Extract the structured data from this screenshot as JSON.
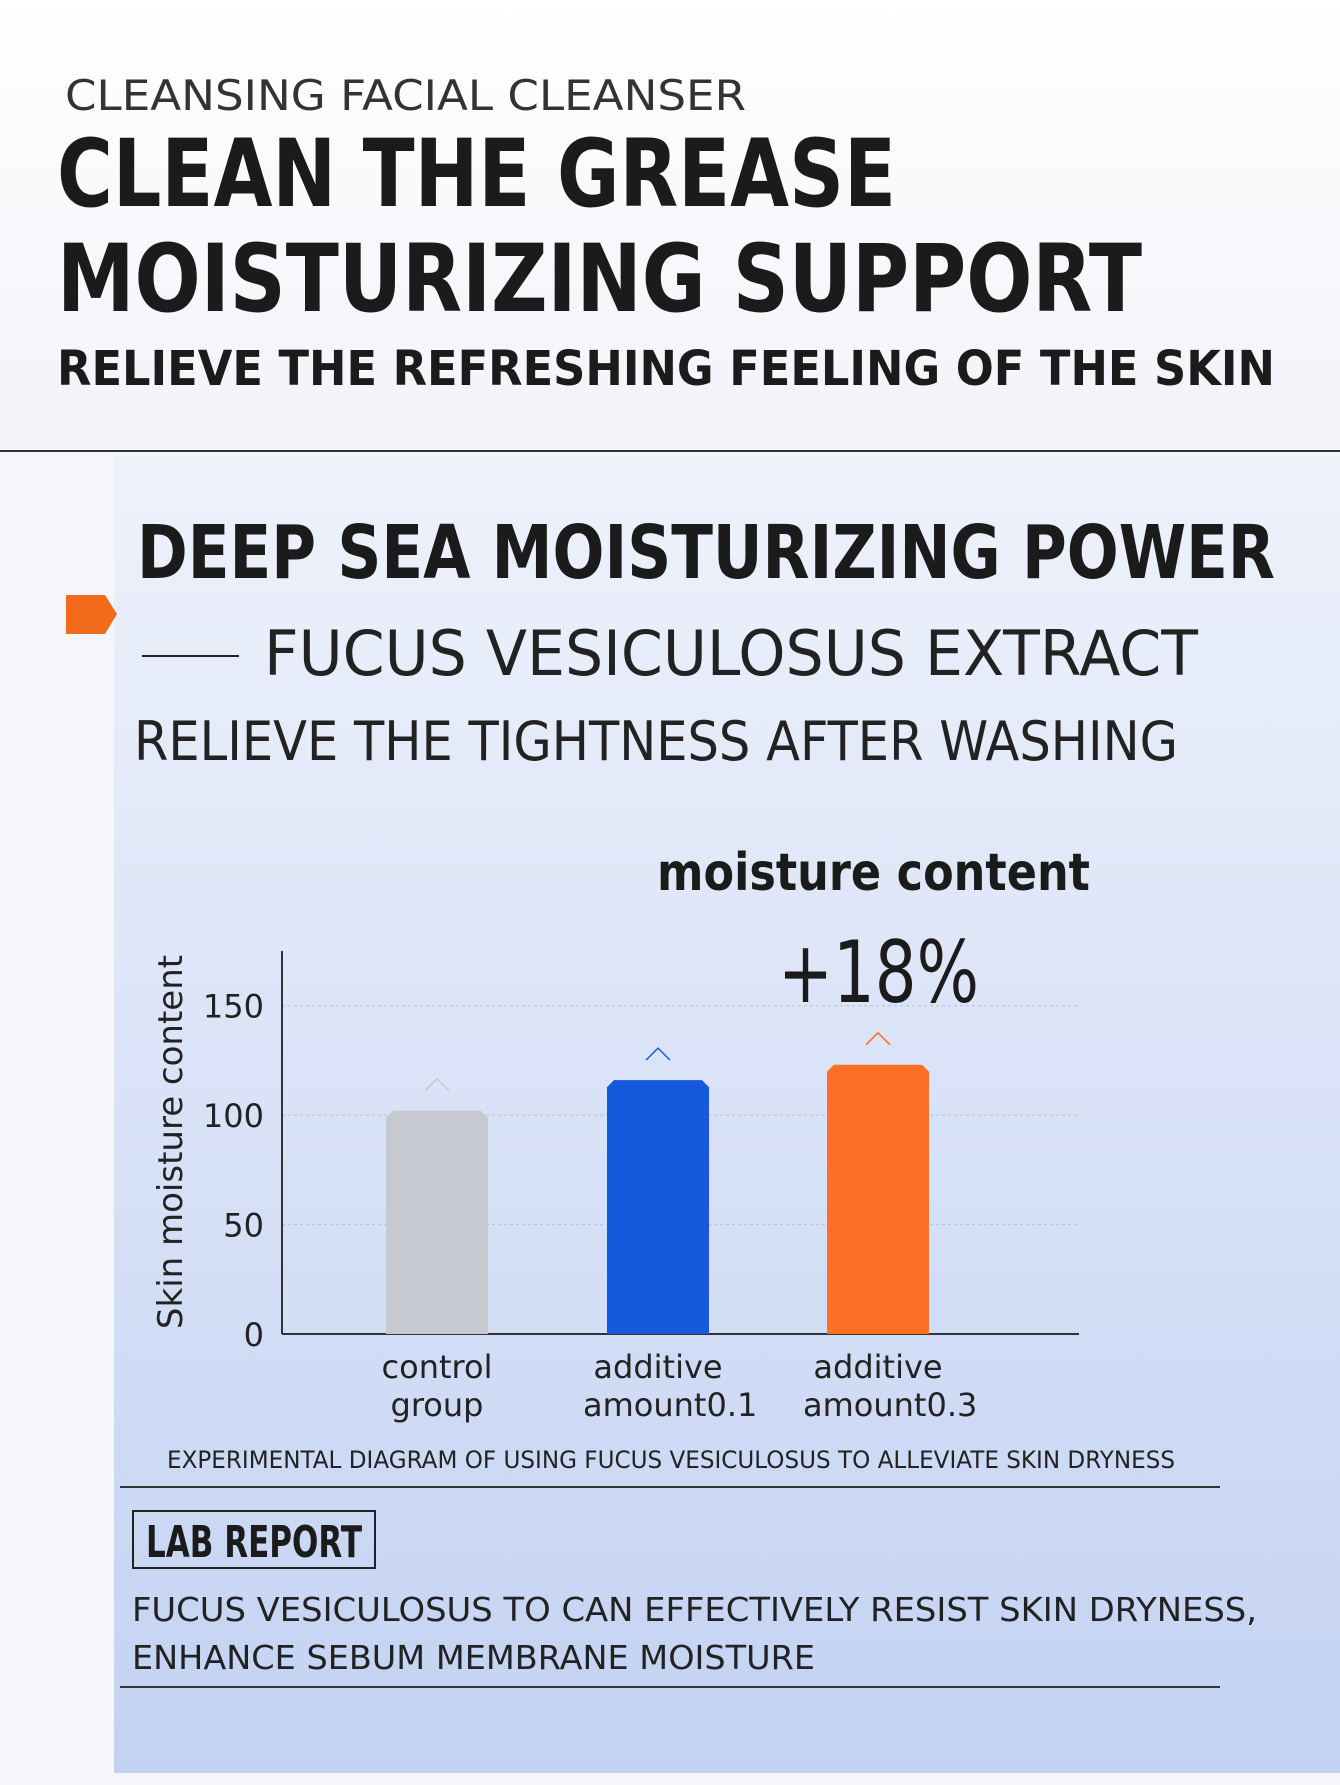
{
  "header": {
    "eyebrow": "CLEANSING FACIAL CLEANSER",
    "title_lines": [
      "CLEAN THE GREASE",
      "MOISTURIZING SUPPORT"
    ],
    "subtitle": "RELIEVE THE REFRESHING FEELING OF THE SKIN"
  },
  "section": {
    "title": "DEEP SEA MOISTURIZING POWER",
    "ingredient": "FUCUS VESICULOSUS EXTRACT",
    "tagline": "RELIEVE THE TIGHTNESS AFTER WASHING"
  },
  "chart_data": {
    "type": "bar",
    "title": "moisture content",
    "annotation": "+18%",
    "y_label": "Skin moisture content",
    "caption": "EXPERIMENTAL DIAGRAM OF USING FUCUS VESICULOSUS TO ALLEVIATE SKIN DRYNESS",
    "categories": [
      "control group",
      "additive amount0.1",
      "additive amount0.3"
    ],
    "values": [
      102,
      116,
      123
    ],
    "colors": [
      "#c6c9cf",
      "#1759dc",
      "#fb7024"
    ],
    "ylim": [
      0,
      175
    ],
    "yticks": [
      0,
      50,
      100,
      150
    ],
    "grid": true
  },
  "lab_report": {
    "title": "LAB REPORT",
    "lines": [
      "FUCUS VESICULOSUS TO CAN EFFECTIVELY RESIST SKIN DRYNESS,",
      "ENHANCE SEBUM MEMBRANE MOISTURE"
    ]
  }
}
